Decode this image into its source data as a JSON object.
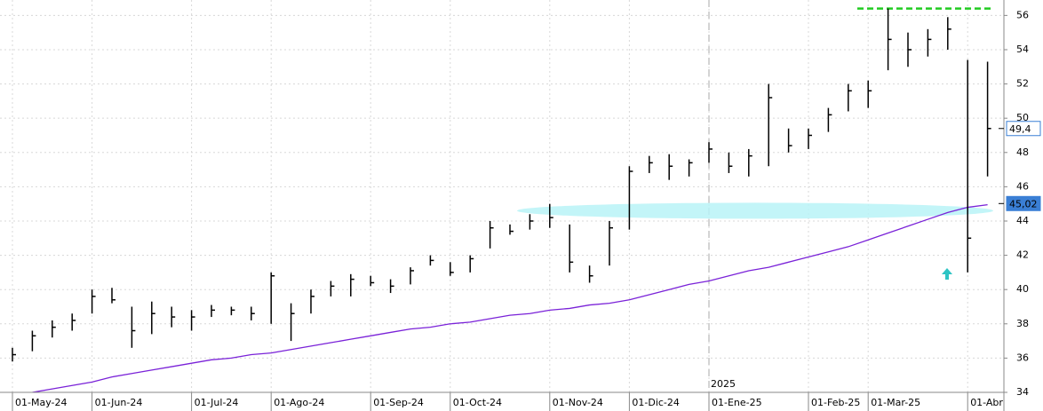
{
  "chart_data": {
    "type": "ohlc",
    "categories": [
      "01-May-24",
      null,
      null,
      null,
      "01-Jun-24",
      null,
      null,
      null,
      null,
      "01-Jul-24",
      null,
      null,
      null,
      "01-Ago-24",
      null,
      null,
      null,
      null,
      "01-Sep-24",
      null,
      null,
      null,
      "01-Oct-24",
      null,
      null,
      null,
      null,
      "01-Nov-24",
      null,
      null,
      null,
      "01-Dic-24",
      null,
      null,
      null,
      "01-Ene-25",
      null,
      null,
      null,
      null,
      "01-Feb-25",
      null,
      null,
      "01-Mar-25",
      null,
      null,
      null,
      null,
      "01-Abr",
      null
    ],
    "high": [
      36.6,
      37.6,
      38.2,
      38.6,
      40.0,
      40.1,
      39.0,
      39.3,
      39.0,
      38.8,
      39.1,
      39.0,
      39.0,
      41.0,
      39.2,
      40.0,
      40.5,
      40.9,
      40.8,
      40.6,
      41.3,
      42.0,
      41.6,
      42.0,
      44.0,
      43.8,
      44.4,
      45.0,
      43.8,
      41.4,
      44.0,
      47.2,
      47.8,
      47.9,
      47.6,
      48.6,
      48.0,
      48.2,
      52.0,
      49.4,
      49.4,
      50.6,
      52.0,
      52.2,
      56.4,
      55.0,
      55.2,
      55.9,
      53.4,
      53.3
    ],
    "low": [
      35.8,
      36.4,
      37.2,
      37.6,
      38.6,
      39.2,
      36.6,
      37.4,
      37.8,
      37.6,
      38.4,
      38.5,
      38.2,
      38.0,
      37.0,
      38.6,
      39.6,
      39.6,
      40.2,
      39.8,
      40.3,
      41.4,
      40.8,
      41.0,
      42.4,
      43.2,
      43.5,
      43.6,
      41.0,
      40.4,
      41.4,
      43.5,
      46.8,
      46.4,
      46.6,
      47.4,
      46.8,
      46.6,
      47.2,
      48.0,
      48.2,
      49.2,
      50.4,
      50.6,
      52.8,
      53.0,
      53.6,
      54.0,
      41.0,
      46.6
    ],
    "close": [
      36.2,
      37.3,
      37.8,
      38.2,
      39.6,
      39.4,
      37.6,
      38.6,
      38.4,
      38.4,
      38.8,
      38.8,
      38.6,
      40.8,
      38.6,
      39.6,
      40.2,
      40.6,
      40.4,
      40.2,
      41.1,
      41.7,
      41.0,
      41.8,
      43.6,
      43.4,
      44.0,
      44.2,
      41.6,
      40.8,
      43.6,
      46.9,
      47.4,
      47.2,
      47.4,
      48.2,
      47.2,
      47.8,
      51.2,
      48.4,
      49.0,
      50.2,
      51.6,
      51.6,
      54.6,
      54.0,
      54.6,
      55.2,
      43.0,
      49.4
    ],
    "bar_color": "#000000",
    "ma": {
      "color": "#7a22d8",
      "values": [
        33.9,
        34.0,
        34.2,
        34.4,
        34.6,
        34.9,
        35.1,
        35.3,
        35.5,
        35.7,
        35.9,
        36.0,
        36.2,
        36.3,
        36.5,
        36.7,
        36.9,
        37.1,
        37.3,
        37.5,
        37.7,
        37.8,
        38.0,
        38.1,
        38.3,
        38.5,
        38.6,
        38.8,
        38.9,
        39.1,
        39.2,
        39.4,
        39.7,
        40.0,
        40.3,
        40.5,
        40.8,
        41.1,
        41.3,
        41.6,
        41.9,
        42.2,
        42.5,
        42.9,
        43.3,
        43.7,
        44.1,
        44.5,
        44.8,
        44.95
      ]
    },
    "ylim": [
      34,
      56.9
    ],
    "yticks": [
      34,
      36,
      38,
      40,
      42,
      44,
      46,
      48,
      50,
      52,
      54,
      56
    ],
    "grid": true,
    "year_label": "2025",
    "resistance": {
      "value": 56.4,
      "color": "#22cc22"
    },
    "support": {
      "value": 44.6,
      "color": "#b8f3f7"
    },
    "price_labels": [
      {
        "value": 49.4,
        "value_label": "49,4",
        "color": "#ffffff"
      },
      {
        "value": 45.02,
        "value_label": "45,02",
        "color": "#3a7fd5"
      }
    ]
  }
}
